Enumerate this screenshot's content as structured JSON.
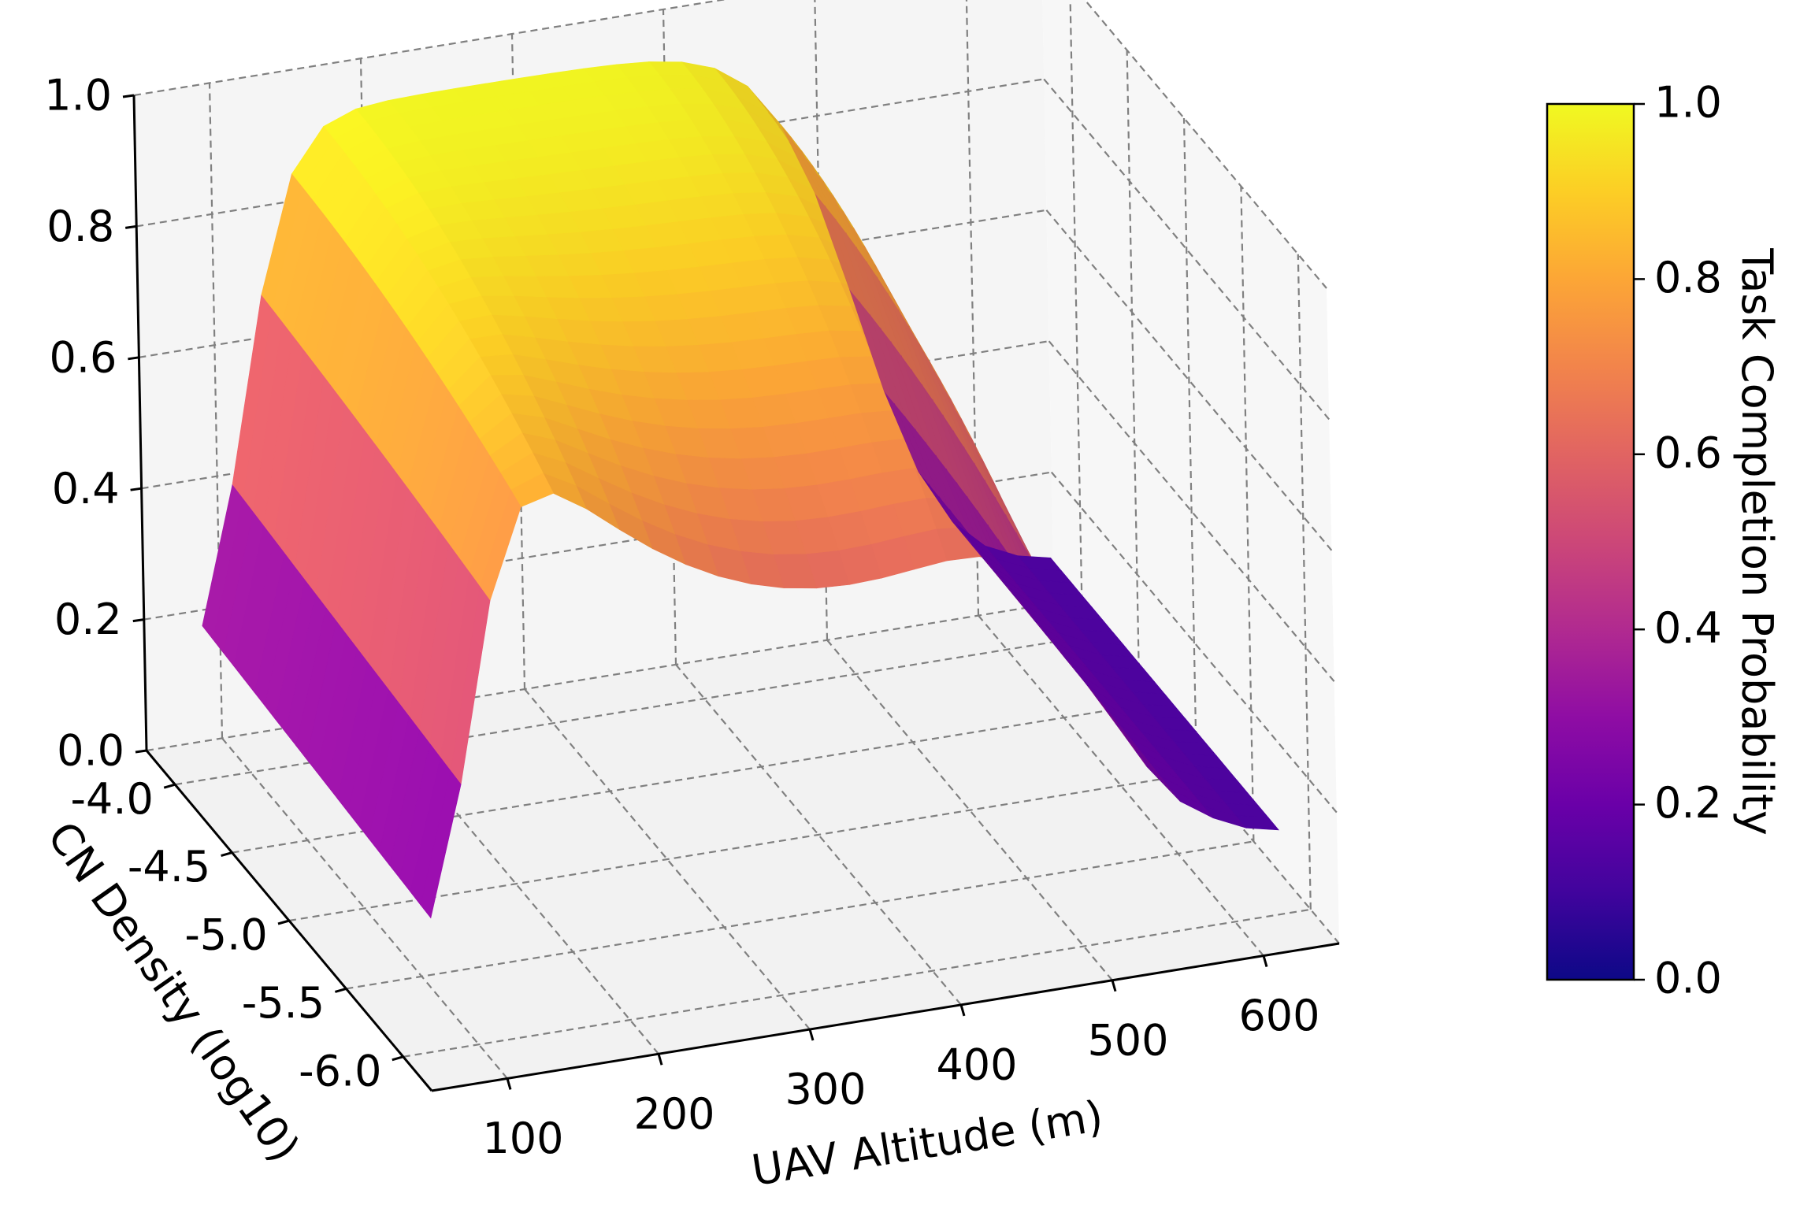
{
  "chart_data": {
    "type": "surface",
    "x_axis": {
      "label": "UAV Altitude (m)",
      "ticks": [
        "100",
        "200",
        "300",
        "400",
        "500",
        "600"
      ],
      "tick_values": [
        100,
        200,
        300,
        400,
        500,
        600
      ],
      "range": [
        50,
        650
      ]
    },
    "y_axis": {
      "label": "CN Density (log10)",
      "ticks": [
        "-4.0",
        "-4.5",
        "-5.0",
        "-5.5",
        "-6.0"
      ],
      "tick_values": [
        -4.0,
        -4.5,
        -5.0,
        -5.5,
        -6.0
      ],
      "range": [
        -6.25,
        -3.75
      ]
    },
    "z_axis": {
      "ticks": [
        "0.0",
        "0.2",
        "0.4",
        "0.6",
        "0.8",
        "1.0"
      ],
      "tick_values": [
        0.0,
        0.2,
        0.4,
        0.6,
        0.8,
        1.0
      ],
      "range": [
        0,
        1
      ]
    },
    "colorbar": {
      "label": "Task Completion Probability",
      "ticks": [
        "0.0",
        "0.2",
        "0.4",
        "0.6",
        "0.8",
        "1.0"
      ],
      "tick_values": [
        0.0,
        0.2,
        0.4,
        0.6,
        0.8,
        1.0
      ],
      "colormap": "plasma"
    },
    "grid": true,
    "surface": {
      "altitude_range": [
        70,
        630
      ],
      "density_range": [
        -6.0,
        -4.0
      ],
      "description_values": {
        "plateau_value": 0.99,
        "min_value_front_left": 0.1,
        "min_value_front_right": 0.0,
        "mid_altitude_front": 0.62
      }
    },
    "colors": {
      "grid_line": "#808080",
      "pane": "#f2f2f2",
      "axis_line": "#000000"
    }
  }
}
